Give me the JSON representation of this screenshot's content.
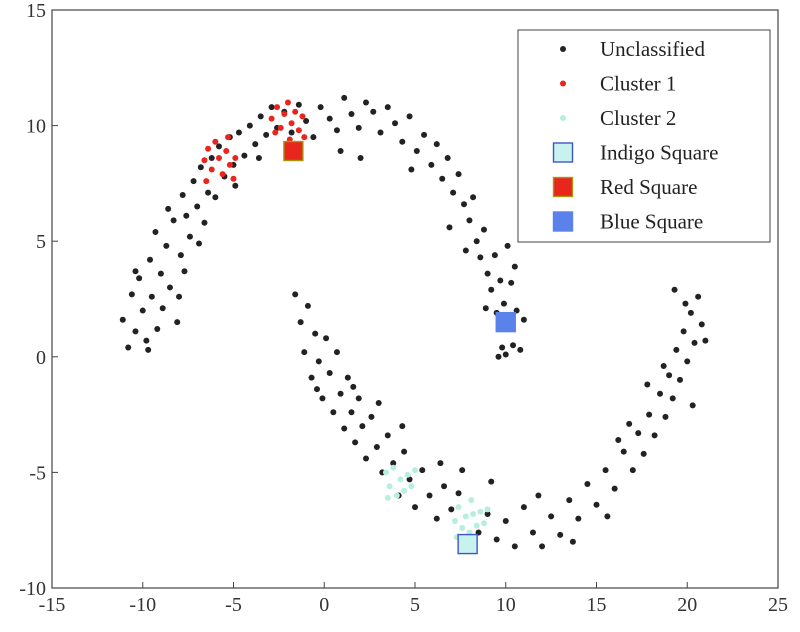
{
  "chart_data": {
    "type": "scatter",
    "xlim": [
      -15,
      25
    ],
    "ylim": [
      -10,
      15
    ],
    "xticks": [
      "-15",
      "-10",
      "-5",
      "0",
      "5",
      "10",
      "15",
      "20",
      "25"
    ],
    "yticks": [
      "-10",
      "-5",
      "0",
      "5",
      "10",
      "15"
    ],
    "legend_position": "top-right",
    "series": [
      {
        "name": "Unclassified",
        "color": "#222222",
        "marker": "dot",
        "points": [
          [
            -11.1,
            1.6
          ],
          [
            -10.8,
            0.4
          ],
          [
            -10.6,
            2.7
          ],
          [
            -10.4,
            1.1
          ],
          [
            -10.2,
            3.4
          ],
          [
            -10.0,
            2.0
          ],
          [
            -9.8,
            0.7
          ],
          [
            -9.6,
            4.2
          ],
          [
            -9.5,
            2.6
          ],
          [
            -9.3,
            5.4
          ],
          [
            -9.2,
            1.2
          ],
          [
            -9.0,
            3.6
          ],
          [
            -8.9,
            2.1
          ],
          [
            -8.7,
            4.8
          ],
          [
            -8.6,
            6.4
          ],
          [
            -8.5,
            3.0
          ],
          [
            -8.3,
            5.9
          ],
          [
            -8.1,
            1.5
          ],
          [
            -7.9,
            4.4
          ],
          [
            -7.8,
            7.0
          ],
          [
            -7.6,
            6.1
          ],
          [
            -7.4,
            5.2
          ],
          [
            -7.2,
            7.6
          ],
          [
            -7.0,
            6.5
          ],
          [
            -6.8,
            8.2
          ],
          [
            -6.6,
            5.8
          ],
          [
            -6.4,
            7.1
          ],
          [
            -6.2,
            8.6
          ],
          [
            -6.0,
            6.9
          ],
          [
            -5.8,
            9.1
          ],
          [
            -5.5,
            7.8
          ],
          [
            -5.2,
            9.5
          ],
          [
            -5.0,
            8.3
          ],
          [
            -4.7,
            9.7
          ],
          [
            -4.4,
            8.7
          ],
          [
            -4.1,
            10.0
          ],
          [
            -3.8,
            9.2
          ],
          [
            -3.5,
            10.4
          ],
          [
            -3.2,
            9.6
          ],
          [
            -2.9,
            10.8
          ],
          [
            -2.6,
            9.9
          ],
          [
            -2.2,
            10.6
          ],
          [
            -1.8,
            9.7
          ],
          [
            -1.4,
            10.9
          ],
          [
            -1.0,
            10.2
          ],
          [
            -0.6,
            9.5
          ],
          [
            -0.2,
            10.8
          ],
          [
            0.3,
            10.3
          ],
          [
            0.7,
            9.8
          ],
          [
            1.1,
            11.2
          ],
          [
            1.5,
            10.5
          ],
          [
            1.9,
            9.9
          ],
          [
            2.3,
            11.0
          ],
          [
            2.7,
            10.6
          ],
          [
            3.1,
            9.7
          ],
          [
            3.5,
            10.8
          ],
          [
            3.9,
            10.1
          ],
          [
            4.3,
            9.3
          ],
          [
            4.7,
            10.4
          ],
          [
            5.1,
            8.9
          ],
          [
            5.5,
            9.6
          ],
          [
            5.9,
            8.3
          ],
          [
            6.2,
            9.2
          ],
          [
            6.5,
            7.7
          ],
          [
            6.8,
            8.6
          ],
          [
            7.1,
            7.1
          ],
          [
            7.4,
            7.9
          ],
          [
            7.7,
            6.6
          ],
          [
            8.0,
            5.9
          ],
          [
            8.2,
            6.9
          ],
          [
            8.4,
            5.0
          ],
          [
            8.6,
            4.3
          ],
          [
            8.8,
            5.5
          ],
          [
            9.0,
            3.6
          ],
          [
            9.2,
            2.9
          ],
          [
            9.4,
            4.4
          ],
          [
            9.5,
            1.9
          ],
          [
            9.7,
            3.3
          ],
          [
            9.8,
            0.4
          ],
          [
            9.9,
            2.3
          ],
          [
            10.0,
            0.1
          ],
          [
            10.1,
            4.8
          ],
          [
            10.2,
            1.3
          ],
          [
            10.3,
            3.2
          ],
          [
            10.4,
            0.5
          ],
          [
            10.6,
            2.0
          ],
          [
            10.8,
            0.3
          ],
          [
            11.0,
            1.6
          ],
          [
            10.5,
            3.9
          ],
          [
            9.6,
            0.0
          ],
          [
            -1.6,
            2.7
          ],
          [
            -1.3,
            1.5
          ],
          [
            -1.1,
            0.2
          ],
          [
            -0.9,
            2.2
          ],
          [
            -0.7,
            -0.9
          ],
          [
            -0.5,
            1.0
          ],
          [
            -0.3,
            -0.2
          ],
          [
            -0.1,
            -1.8
          ],
          [
            0.1,
            0.8
          ],
          [
            0.3,
            -0.7
          ],
          [
            0.5,
            -2.4
          ],
          [
            0.7,
            0.2
          ],
          [
            0.9,
            -1.6
          ],
          [
            1.1,
            -3.1
          ],
          [
            1.3,
            -0.9
          ],
          [
            1.5,
            -2.4
          ],
          [
            1.7,
            -3.7
          ],
          [
            1.9,
            -1.8
          ],
          [
            2.1,
            -3.0
          ],
          [
            2.3,
            -4.4
          ],
          [
            2.6,
            -2.6
          ],
          [
            2.9,
            -3.9
          ],
          [
            3.2,
            -5.0
          ],
          [
            3.5,
            -3.4
          ],
          [
            3.8,
            -4.6
          ],
          [
            4.1,
            -6.0
          ],
          [
            4.4,
            -4.1
          ],
          [
            4.7,
            -5.3
          ],
          [
            5.0,
            -6.5
          ],
          [
            5.4,
            -4.9
          ],
          [
            5.8,
            -6.0
          ],
          [
            6.2,
            -7.0
          ],
          [
            6.6,
            -5.6
          ],
          [
            7.0,
            -6.6
          ],
          [
            7.4,
            -5.9
          ],
          [
            8.5,
            -7.6
          ],
          [
            9.0,
            -6.8
          ],
          [
            9.5,
            -7.9
          ],
          [
            10.0,
            -7.1
          ],
          [
            10.5,
            -8.2
          ],
          [
            11.0,
            -6.5
          ],
          [
            11.5,
            -7.6
          ],
          [
            12.0,
            -8.2
          ],
          [
            12.5,
            -6.9
          ],
          [
            13.0,
            -7.7
          ],
          [
            13.5,
            -6.2
          ],
          [
            14.0,
            -7.0
          ],
          [
            14.5,
            -5.5
          ],
          [
            15.0,
            -6.4
          ],
          [
            15.5,
            -4.9
          ],
          [
            16.0,
            -5.7
          ],
          [
            16.5,
            -4.1
          ],
          [
            17.0,
            -4.9
          ],
          [
            17.3,
            -3.3
          ],
          [
            17.6,
            -4.2
          ],
          [
            17.9,
            -2.5
          ],
          [
            18.2,
            -3.4
          ],
          [
            18.5,
            -1.6
          ],
          [
            18.8,
            -2.6
          ],
          [
            19.0,
            -0.8
          ],
          [
            19.2,
            -1.8
          ],
          [
            19.4,
            0.3
          ],
          [
            19.6,
            -1.0
          ],
          [
            19.8,
            1.1
          ],
          [
            20.0,
            -0.2
          ],
          [
            20.2,
            1.9
          ],
          [
            20.4,
            0.6
          ],
          [
            20.6,
            2.6
          ],
          [
            20.8,
            1.4
          ],
          [
            21.0,
            0.7
          ],
          [
            19.3,
            2.9
          ],
          [
            19.9,
            2.3
          ],
          [
            20.3,
            -2.1
          ],
          [
            18.7,
            -0.4
          ],
          [
            17.8,
            -1.2
          ],
          [
            16.8,
            -2.9
          ],
          [
            16.2,
            -3.6
          ],
          [
            15.6,
            -6.9
          ],
          [
            13.7,
            -8.0
          ],
          [
            11.8,
            -6.0
          ],
          [
            -8.0,
            2.6
          ],
          [
            -7.7,
            3.7
          ],
          [
            -6.9,
            4.9
          ],
          [
            -10.4,
            3.7
          ],
          [
            -9.7,
            0.3
          ],
          [
            -4.9,
            7.4
          ],
          [
            -3.6,
            8.6
          ],
          [
            0.9,
            8.9
          ],
          [
            2.0,
            8.6
          ],
          [
            4.8,
            8.1
          ],
          [
            6.9,
            5.6
          ],
          [
            7.8,
            4.6
          ],
          [
            8.9,
            2.1
          ],
          [
            -0.4,
            -1.4
          ],
          [
            1.6,
            -1.3
          ],
          [
            3.0,
            -2.0
          ],
          [
            4.3,
            -3.0
          ],
          [
            6.4,
            -4.6
          ],
          [
            7.6,
            -4.9
          ],
          [
            9.2,
            -5.4
          ]
        ]
      },
      {
        "name": "Cluster 1",
        "color": "#e8261e",
        "marker": "dot",
        "points": [
          [
            -6.6,
            8.5
          ],
          [
            -6.4,
            9.0
          ],
          [
            -6.2,
            8.1
          ],
          [
            -6.0,
            9.3
          ],
          [
            -5.8,
            8.6
          ],
          [
            -5.6,
            7.9
          ],
          [
            -5.4,
            8.9
          ],
          [
            -5.2,
            8.3
          ],
          [
            -5.0,
            7.7
          ],
          [
            -4.9,
            8.6
          ],
          [
            -6.5,
            7.6
          ],
          [
            -5.3,
            9.5
          ],
          [
            -2.9,
            10.3
          ],
          [
            -2.6,
            10.8
          ],
          [
            -2.4,
            9.9
          ],
          [
            -2.2,
            10.5
          ],
          [
            -2.0,
            11.0
          ],
          [
            -1.8,
            10.1
          ],
          [
            -1.6,
            10.6
          ],
          [
            -1.4,
            9.8
          ],
          [
            -1.2,
            10.4
          ],
          [
            -2.7,
            9.7
          ],
          [
            -1.9,
            9.4
          ],
          [
            -1.1,
            9.5
          ]
        ]
      },
      {
        "name": "Cluster 2",
        "color": "#b8eedf",
        "marker": "dot",
        "points": [
          [
            3.4,
            -5.0
          ],
          [
            3.6,
            -5.6
          ],
          [
            3.8,
            -4.8
          ],
          [
            4.0,
            -6.0
          ],
          [
            4.2,
            -5.3
          ],
          [
            4.4,
            -5.8
          ],
          [
            4.6,
            -5.1
          ],
          [
            4.8,
            -5.6
          ],
          [
            5.0,
            -4.9
          ],
          [
            3.5,
            -6.1
          ],
          [
            7.2,
            -7.1
          ],
          [
            7.4,
            -6.5
          ],
          [
            7.6,
            -7.4
          ],
          [
            7.8,
            -6.9
          ],
          [
            8.0,
            -7.6
          ],
          [
            8.2,
            -6.8
          ],
          [
            8.4,
            -7.3
          ],
          [
            8.6,
            -6.7
          ],
          [
            8.8,
            -7.2
          ],
          [
            9.0,
            -6.6
          ],
          [
            7.3,
            -7.8
          ],
          [
            8.1,
            -6.2
          ]
        ]
      },
      {
        "name": "Indigo Square",
        "color": "#c8f2ee",
        "edge": "#3f55cc",
        "marker": "square",
        "points": [
          [
            7.9,
            -8.1
          ]
        ]
      },
      {
        "name": "Red Square",
        "color": "#e8261e",
        "edge": "#a8960f",
        "marker": "square",
        "points": [
          [
            -1.7,
            8.9
          ]
        ]
      },
      {
        "name": "Blue Square",
        "color": "#5b82ea",
        "edge": "#5b82ea",
        "marker": "square",
        "points": [
          [
            10.0,
            1.5
          ]
        ]
      }
    ]
  }
}
